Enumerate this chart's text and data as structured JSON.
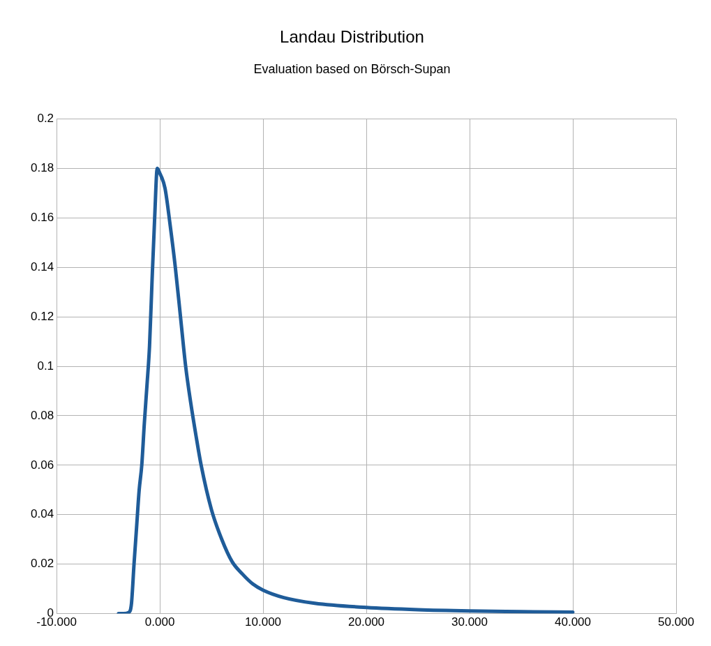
{
  "chart_data": {
    "type": "line",
    "title": "Landau Distribution",
    "subtitle": "Evaluation based on Börsch-Supan",
    "series": [
      {
        "color": "#1f5c99",
        "x": [
          -4,
          -3.5,
          -3,
          -2.75,
          -2.5,
          -2.25,
          -2,
          -1.75,
          -1.5,
          -1.25,
          -1,
          -0.75,
          -0.5,
          -0.25,
          0,
          0.5,
          1,
          1.5,
          2,
          2.5,
          3,
          3.5,
          4,
          5,
          6,
          7,
          8,
          9,
          10,
          12,
          15,
          20,
          25,
          30,
          35,
          40
        ],
        "values": [
          0,
          0,
          0.0005,
          0.004,
          0.02,
          0.035,
          0.05,
          0.06,
          0.077,
          0.092,
          0.108,
          0.135,
          0.16,
          0.18,
          0.178,
          0.172,
          0.157,
          0.14,
          0.12,
          0.1,
          0.085,
          0.072,
          0.06,
          0.042,
          0.03,
          0.021,
          0.016,
          0.012,
          0.0095,
          0.0065,
          0.0042,
          0.0025,
          0.0016,
          0.0011,
          0.0008,
          0.0006
        ]
      }
    ],
    "xlim": [
      -10,
      50
    ],
    "xticks": [
      {
        "value": -10,
        "label": "-10.000"
      },
      {
        "value": 0,
        "label": "0.000"
      },
      {
        "value": 10,
        "label": "10.000"
      },
      {
        "value": 20,
        "label": "20.000"
      },
      {
        "value": 30,
        "label": "30.000"
      },
      {
        "value": 40,
        "label": "40.000"
      },
      {
        "value": 50,
        "label": "50.000"
      }
    ],
    "ylim": [
      0,
      0.2
    ],
    "yticks": [
      0,
      0.02,
      0.04,
      0.06,
      0.08,
      0.1,
      0.12,
      0.14,
      0.16,
      0.18,
      0.2
    ],
    "grid": true,
    "legend": false,
    "marker": "none",
    "line_style": "solid"
  }
}
